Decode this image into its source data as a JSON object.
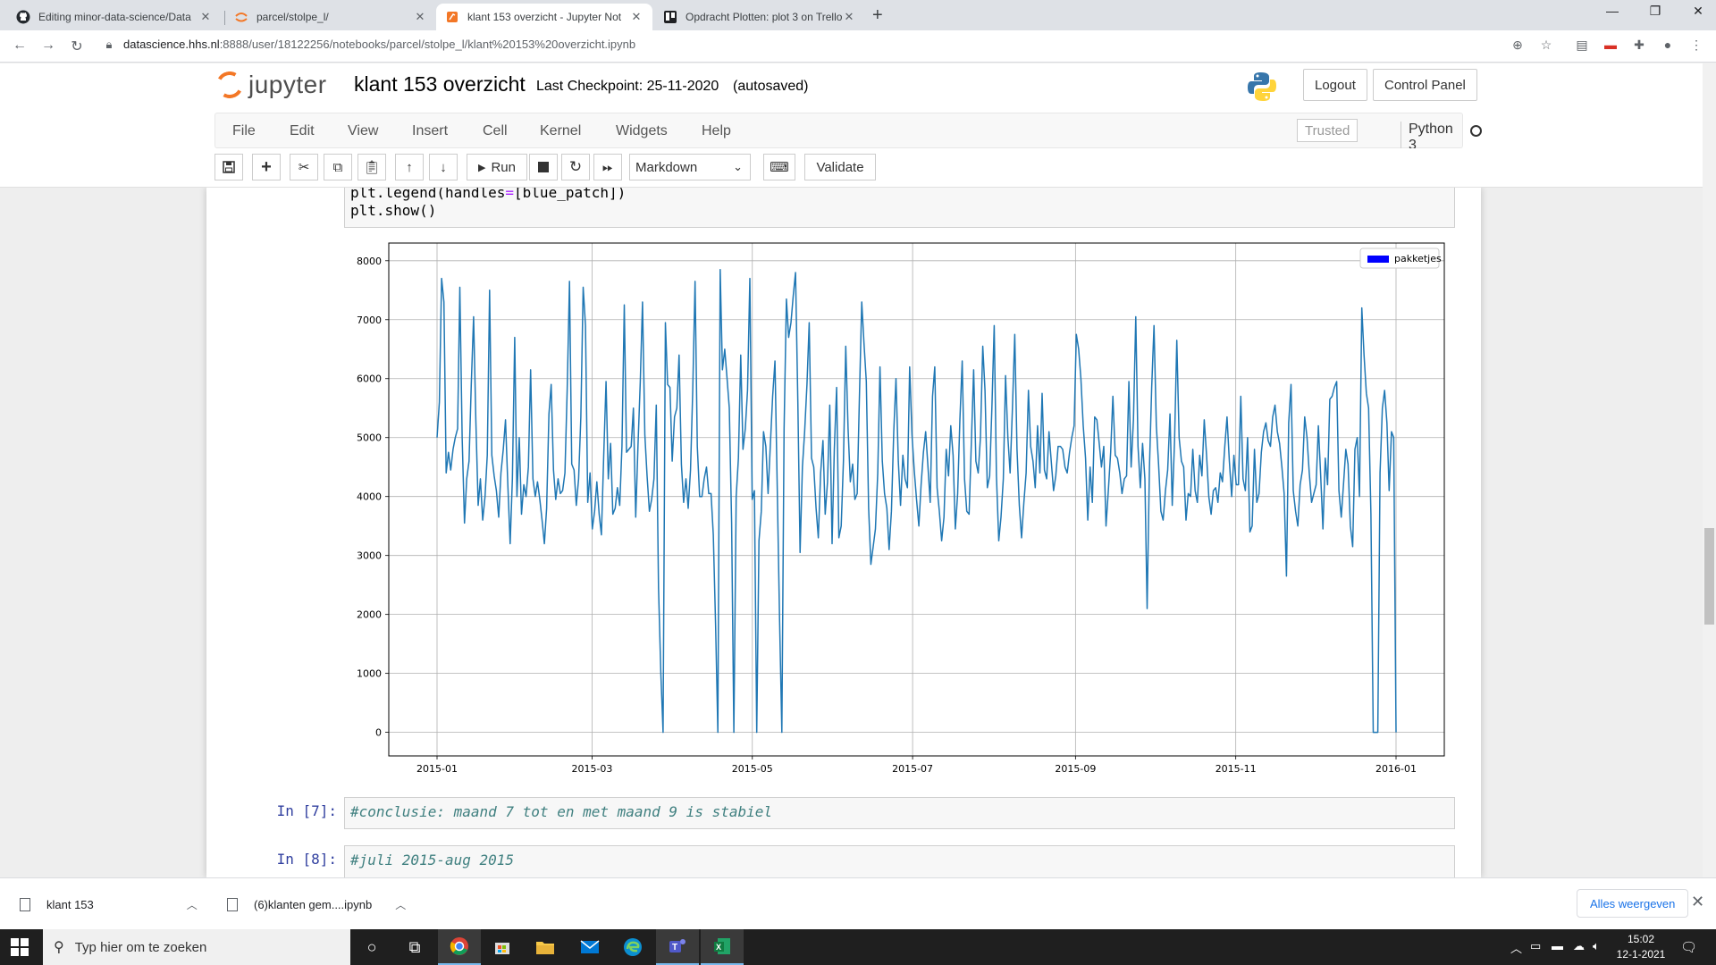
{
  "browser": {
    "tabs": [
      {
        "title": "Editing minor-data-science/Data",
        "icon": "github-icon",
        "active": false
      },
      {
        "title": "parcel/stolpe_l/",
        "icon": "jupyter-icon",
        "active": false
      },
      {
        "title": "klant 153 overzicht - Jupyter Not",
        "icon": "jupyter-icon",
        "active": true
      },
      {
        "title": "Opdracht Plotten: plot 3 on Trello",
        "icon": "trello-icon",
        "active": false
      }
    ],
    "url_host": "datascience.hhs.nl",
    "url_path": ":8888/user/18122256/notebooks/parcel/stolpe_l/klant%20153%20overzicht.ipynb"
  },
  "jupyter": {
    "logo_text": "jupyter",
    "notebook_name": "klant 153 overzicht",
    "checkpoint": "Last Checkpoint: 25-11-2020",
    "autosave": "(autosaved)",
    "logout": "Logout",
    "control_panel": "Control Panel",
    "menus": [
      "File",
      "Edit",
      "View",
      "Insert",
      "Cell",
      "Kernel",
      "Widgets",
      "Help"
    ],
    "trusted": "Trusted",
    "kernel": "Python 3",
    "run_label": "Run",
    "cell_type": "Markdown",
    "validate": "Validate"
  },
  "cells": {
    "code_lines": [
      "plt.legend(handles=[blue_patch])",
      "plt.show()"
    ],
    "cell7_prompt": "In [7]:",
    "cell7_text": "#conclusie: maand 7 tot en met maand 9 is stabiel",
    "cell8_prompt": "In [8]:",
    "cell8_text": "#juli 2015-aug 2015"
  },
  "chart_data": {
    "type": "line",
    "x_start": "2015-01-01",
    "x_end": "2016-01-01",
    "x_ticks": [
      "2015-01",
      "2015-03",
      "2015-05",
      "2015-07",
      "2015-09",
      "2015-11",
      "2016-01"
    ],
    "y_ticks": [
      0,
      1000,
      2000,
      3000,
      4000,
      5000,
      6000,
      7000,
      8000
    ],
    "ylim": [
      -400,
      8300
    ],
    "legend": "pakketjes",
    "legend_position": "top-right",
    "grid": true,
    "series": [
      {
        "name": "pakketjes",
        "color": "#1f77b4",
        "values": [
          5000,
          5600,
          7700,
          7300,
          4400,
          4750,
          4450,
          4800,
          5000,
          5150,
          7550,
          5000,
          3550,
          4300,
          4600,
          5900,
          7050,
          5300,
          3850,
          4300,
          3600,
          4000,
          4700,
          7500,
          4700,
          4350,
          4100,
          3650,
          4400,
          4800,
          5300,
          4200,
          3200,
          4300,
          6700,
          4000,
          5000,
          3700,
          4200,
          4000,
          4500,
          6150,
          4300,
          4000,
          4250,
          3950,
          3600,
          3200,
          3800,
          5400,
          5900,
          4450,
          3950,
          4300,
          4050,
          4100,
          4400,
          5800,
          7650,
          4550,
          4450,
          3850,
          4300,
          5350,
          7550,
          6900,
          3900,
          4400,
          3450,
          3750,
          4250,
          3700,
          3350,
          4700,
          5950,
          4300,
          4900,
          3700,
          3800,
          4150,
          3850,
          4850,
          7250,
          4750,
          4800,
          4850,
          5500,
          3650,
          4850,
          5950,
          7300,
          5050,
          4350,
          3750,
          3950,
          4300,
          5550,
          2450,
          1000,
          0,
          6950,
          5900,
          5850,
          4600,
          5350,
          5500,
          6400,
          4550,
          3900,
          4300,
          3800,
          4450,
          5800,
          7650,
          4850,
          4000,
          4000,
          4300,
          4500,
          4050,
          4050,
          3350,
          1800,
          0,
          7850,
          6150,
          6500,
          6000,
          5500,
          3550,
          0,
          4000,
          4650,
          6400,
          4800,
          5150,
          5800,
          7700,
          3950,
          4100,
          0,
          3250,
          3750,
          5100,
          4850,
          4050,
          4900,
          5700,
          6300,
          4100,
          1950,
          0,
          5150,
          7350,
          6700,
          6950,
          7400,
          7800,
          5600,
          3050,
          4500,
          5100,
          5900,
          6950,
          4650,
          4500,
          3800,
          3300,
          4400,
          4950,
          3700,
          4250,
          5550,
          3200,
          4800,
          5850,
          3300,
          3500,
          4600,
          6550,
          5150,
          4250,
          4550,
          3950,
          4050,
          5700,
          7300,
          6600,
          5950,
          3800,
          2850,
          3150,
          3450,
          4400,
          6200,
          4600,
          4050,
          3800,
          3100,
          3750,
          5100,
          6000,
          4600,
          3850,
          4700,
          4300,
          4150,
          6200,
          5050,
          4450,
          3950,
          3500,
          4200,
          4750,
          5100,
          4500,
          3900,
          5700,
          6200,
          4150,
          3750,
          3250,
          3650,
          4800,
          4350,
          5200,
          4700,
          3450,
          4050,
          5300,
          6300,
          4300,
          3750,
          3700,
          4900,
          6150,
          4600,
          4400,
          5000,
          6550,
          5800,
          4150,
          4350,
          5500,
          6900,
          4350,
          3250,
          3650,
          4300,
          6050,
          5000,
          4400,
          5500,
          6750,
          4800,
          3850,
          3300,
          3900,
          4400,
          5800,
          4850,
          4600,
          4150,
          5200,
          4400,
          5750,
          4450,
          4300,
          5100,
          4600,
          4100,
          4350,
          4850,
          4850,
          4800,
          4500,
          4400,
          4750,
          5000,
          5200,
          6750,
          6500,
          6000,
          5200,
          4650,
          3600,
          4500,
          3900,
          5350,
          5300,
          4900,
          4500,
          4850,
          3500,
          4100,
          4750,
          5700,
          4700,
          4650,
          4400,
          4050,
          4300,
          4350,
          5950,
          4500,
          5300,
          7050,
          4850,
          4150,
          4900,
          4300,
          2100,
          4500,
          5850,
          6900,
          5200,
          4550,
          3750,
          3600,
          4100,
          4450,
          5400,
          3850,
          4950,
          6650,
          5000,
          4600,
          4500,
          3600,
          4050,
          4000,
          4800,
          4100,
          3900,
          4700,
          4350,
          5300,
          4700,
          4000,
          3700,
          4100,
          4150,
          3900,
          4400,
          4250,
          4850,
          5350,
          4600,
          4000,
          4700,
          4200,
          4200,
          5700,
          4300,
          4100,
          5000,
          3400,
          3500,
          4800,
          3900,
          4050,
          4750,
          5100,
          5250,
          4950,
          4850,
          5350,
          5550,
          5100,
          4900,
          4500,
          4050,
          2650,
          5250,
          5900,
          4100,
          3750,
          3500,
          4200,
          4450,
          5350,
          5000,
          4400,
          3900,
          4050,
          4200,
          5200,
          4350,
          3450,
          4650,
          4200,
          5650,
          5700,
          5850,
          5950,
          4100,
          3650,
          4200,
          4800,
          4550,
          3500,
          3150,
          4800,
          5000,
          4000,
          7200,
          6400,
          5750,
          5500,
          3700,
          0,
          0,
          0,
          4400,
          5500,
          5800,
          5250,
          4100,
          5100,
          5000,
          0
        ]
      }
    ]
  }
}
